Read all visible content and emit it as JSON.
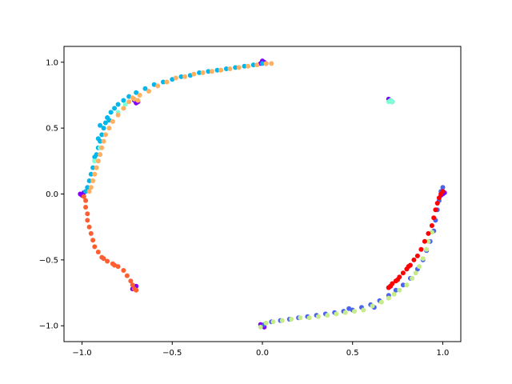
{
  "chart_data": {
    "type": "scatter",
    "title": "",
    "xlabel": "",
    "ylabel": "",
    "xlim": [
      -1.1,
      1.1
    ],
    "ylim": [
      -1.12,
      1.12
    ],
    "grid": false,
    "legend": "none",
    "x_ticks": [
      {
        "value": -1.0,
        "label": "−1.0"
      },
      {
        "value": -0.5,
        "label": "−0.5"
      },
      {
        "value": 0.0,
        "label": "0.0"
      },
      {
        "value": 0.5,
        "label": "0.5"
      },
      {
        "value": 1.0,
        "label": "1.0"
      }
    ],
    "y_ticks": [
      {
        "value": -1.0,
        "label": "−1.0"
      },
      {
        "value": -0.5,
        "label": "−0.5"
      },
      {
        "value": 0.0,
        "label": "0.0"
      },
      {
        "value": 0.5,
        "label": "0.5"
      },
      {
        "value": 1.0,
        "label": "1.0"
      }
    ],
    "series": [
      {
        "color": "#7f00ff",
        "points": [
          [
            0.0,
            1.01
          ],
          [
            0.01,
            1.0
          ],
          [
            -0.01,
            0.99
          ],
          [
            0.02,
            0.99
          ],
          [
            0.71,
            0.71
          ],
          [
            0.72,
            0.7
          ],
          [
            0.7,
            0.72
          ],
          [
            -0.71,
            0.71
          ],
          [
            -0.69,
            0.7
          ],
          [
            -0.7,
            0.69
          ],
          [
            -1.01,
            0.0
          ],
          [
            -1.0,
            -0.01
          ],
          [
            -0.99,
            0.01
          ],
          [
            -0.71,
            -0.71
          ],
          [
            -0.72,
            -0.72
          ],
          [
            -0.7,
            -0.7
          ],
          [
            0.7,
            -0.71
          ],
          [
            0.71,
            -0.7
          ],
          [
            0.0,
            -1.0
          ],
          [
            0.01,
            -1.01
          ],
          [
            -0.01,
            -0.99
          ],
          [
            1.0,
            0.0
          ],
          [
            1.01,
            0.01
          ],
          [
            0.99,
            -0.01
          ]
        ]
      },
      {
        "color": "#00b7eb",
        "points": [
          [
            -0.98,
            0.02
          ],
          [
            -0.97,
            0.05
          ],
          [
            -0.96,
            0.1
          ],
          [
            -0.95,
            0.15
          ],
          [
            -0.94,
            0.2
          ],
          [
            -0.93,
            0.25
          ],
          [
            -0.92,
            0.3
          ],
          [
            -0.91,
            0.35
          ],
          [
            -0.9,
            0.4
          ],
          [
            -0.89,
            0.45
          ],
          [
            -0.88,
            0.5
          ],
          [
            -0.87,
            0.54
          ],
          [
            -0.86,
            0.58
          ],
          [
            -0.84,
            0.62
          ],
          [
            -0.82,
            0.65
          ],
          [
            -0.8,
            0.68
          ],
          [
            -0.77,
            0.71
          ],
          [
            -0.74,
            0.74
          ],
          [
            -0.7,
            0.77
          ],
          [
            -0.65,
            0.8
          ],
          [
            -0.6,
            0.83
          ],
          [
            -0.55,
            0.85
          ],
          [
            -0.5,
            0.87
          ],
          [
            -0.45,
            0.89
          ],
          [
            -0.4,
            0.9
          ],
          [
            -0.35,
            0.92
          ],
          [
            -0.3,
            0.93
          ],
          [
            -0.25,
            0.94
          ],
          [
            -0.2,
            0.95
          ],
          [
            -0.15,
            0.96
          ],
          [
            -0.1,
            0.97
          ],
          [
            -0.05,
            0.98
          ],
          [
            0.0,
            0.99
          ],
          [
            -0.93,
            0.28
          ],
          [
            -0.91,
            0.42
          ],
          [
            -0.9,
            0.52
          ],
          [
            -0.85,
            0.56
          ]
        ]
      },
      {
        "color": "#4a63f0",
        "points": [
          [
            0.01,
            -0.99
          ],
          [
            0.05,
            -0.97
          ],
          [
            0.1,
            -0.96
          ],
          [
            0.15,
            -0.95
          ],
          [
            0.2,
            -0.94
          ],
          [
            0.25,
            -0.93
          ],
          [
            0.3,
            -0.92
          ],
          [
            0.35,
            -0.91
          ],
          [
            0.4,
            -0.9
          ],
          [
            0.45,
            -0.89
          ],
          [
            0.5,
            -0.88
          ],
          [
            0.55,
            -0.86
          ],
          [
            0.6,
            -0.84
          ],
          [
            0.65,
            -0.81
          ],
          [
            0.7,
            -0.77
          ],
          [
            0.74,
            -0.73
          ],
          [
            0.78,
            -0.69
          ],
          [
            0.82,
            -0.64
          ],
          [
            0.86,
            -0.57
          ],
          [
            0.89,
            -0.5
          ],
          [
            0.91,
            -0.43
          ],
          [
            0.93,
            -0.36
          ],
          [
            0.95,
            -0.28
          ],
          [
            0.96,
            -0.2
          ],
          [
            0.97,
            -0.12
          ],
          [
            0.98,
            -0.05
          ],
          [
            0.99,
            0.02
          ],
          [
            1.0,
            0.05
          ],
          [
            0.62,
            -0.86
          ],
          [
            0.48,
            -0.87
          ]
        ]
      },
      {
        "color": "#7fffd4",
        "points": [
          [
            0.71,
            0.71
          ],
          [
            0.72,
            0.7
          ],
          [
            0.7,
            0.7
          ],
          [
            -0.93,
            0.25
          ],
          [
            -0.9,
            0.35
          ],
          [
            -0.8,
            0.62
          ],
          [
            -0.76,
            0.68
          ]
        ]
      },
      {
        "color": "#c6ec8a",
        "points": [
          [
            -0.01,
            -1.01
          ],
          [
            0.02,
            -0.98
          ],
          [
            0.06,
            -0.97
          ],
          [
            0.11,
            -0.96
          ],
          [
            0.16,
            -0.95
          ],
          [
            0.21,
            -0.94
          ],
          [
            0.26,
            -0.94
          ],
          [
            0.31,
            -0.93
          ],
          [
            0.36,
            -0.92
          ],
          [
            0.41,
            -0.91
          ],
          [
            0.46,
            -0.9
          ],
          [
            0.51,
            -0.89
          ],
          [
            0.56,
            -0.88
          ],
          [
            0.61,
            -0.85
          ],
          [
            0.66,
            -0.82
          ],
          [
            0.7,
            -0.79
          ],
          [
            0.73,
            -0.76
          ],
          [
            0.76,
            -0.73
          ],
          [
            0.8,
            -0.69
          ],
          [
            0.83,
            -0.64
          ],
          [
            0.85,
            -0.6
          ],
          [
            0.87,
            -0.55
          ],
          [
            0.89,
            -0.49
          ],
          [
            0.91,
            -0.42
          ],
          [
            0.92,
            -0.36
          ],
          [
            0.94,
            -0.29
          ]
        ]
      },
      {
        "color": "#ffb060",
        "points": [
          [
            -0.96,
            0.02
          ],
          [
            -0.95,
            0.05
          ],
          [
            -0.94,
            0.1
          ],
          [
            -0.93,
            0.15
          ],
          [
            -0.92,
            0.2
          ],
          [
            -0.91,
            0.25
          ],
          [
            -0.9,
            0.3
          ],
          [
            -0.89,
            0.35
          ],
          [
            -0.88,
            0.4
          ],
          [
            -0.87,
            0.45
          ],
          [
            -0.85,
            0.5
          ],
          [
            -0.83,
            0.55
          ],
          [
            -0.8,
            0.6
          ],
          [
            -0.77,
            0.65
          ],
          [
            -0.74,
            0.7
          ],
          [
            -0.71,
            0.72
          ],
          [
            -0.68,
            0.75
          ],
          [
            -0.63,
            0.78
          ],
          [
            -0.58,
            0.82
          ],
          [
            -0.53,
            0.85
          ],
          [
            -0.48,
            0.88
          ],
          [
            -0.43,
            0.89
          ],
          [
            -0.38,
            0.91
          ],
          [
            -0.33,
            0.92
          ],
          [
            -0.28,
            0.93
          ],
          [
            -0.23,
            0.94
          ],
          [
            -0.18,
            0.95
          ],
          [
            -0.13,
            0.96
          ],
          [
            -0.08,
            0.97
          ],
          [
            -0.03,
            0.98
          ],
          [
            0.02,
            0.99
          ],
          [
            0.05,
            0.99
          ],
          [
            -0.72,
            0.73
          ],
          [
            -0.69,
            0.71
          ]
        ]
      },
      {
        "color": "#ff5f30",
        "points": [
          [
            -0.99,
            -0.02
          ],
          [
            -0.98,
            -0.05
          ],
          [
            -0.98,
            -0.1
          ],
          [
            -0.97,
            -0.15
          ],
          [
            -0.97,
            -0.2
          ],
          [
            -0.96,
            -0.25
          ],
          [
            -0.95,
            -0.3
          ],
          [
            -0.94,
            -0.35
          ],
          [
            -0.93,
            -0.4
          ],
          [
            -0.91,
            -0.44
          ],
          [
            -0.89,
            -0.48
          ],
          [
            -0.86,
            -0.51
          ],
          [
            -0.83,
            -0.53
          ],
          [
            -0.8,
            -0.55
          ],
          [
            -0.77,
            -0.58
          ],
          [
            -0.75,
            -0.62
          ],
          [
            -0.73,
            -0.66
          ],
          [
            -0.72,
            -0.69
          ],
          [
            -0.71,
            -0.72
          ],
          [
            -0.7,
            -0.73
          ],
          [
            -0.88,
            -0.49
          ],
          [
            -0.82,
            -0.54
          ]
        ]
      },
      {
        "color": "#ff0000",
        "points": [
          [
            0.7,
            -0.71
          ],
          [
            0.72,
            -0.68
          ],
          [
            0.74,
            -0.66
          ],
          [
            0.76,
            -0.63
          ],
          [
            0.78,
            -0.6
          ],
          [
            0.8,
            -0.57
          ],
          [
            0.82,
            -0.54
          ],
          [
            0.84,
            -0.5
          ],
          [
            0.86,
            -0.47
          ],
          [
            0.88,
            -0.42
          ],
          [
            0.9,
            -0.36
          ],
          [
            0.92,
            -0.3
          ],
          [
            0.94,
            -0.24
          ],
          [
            0.95,
            -0.18
          ],
          [
            0.96,
            -0.12
          ],
          [
            0.97,
            -0.07
          ],
          [
            0.98,
            -0.03
          ],
          [
            0.99,
            0.0
          ],
          [
            1.0,
            0.02
          ],
          [
            0.71,
            -0.7
          ],
          [
            0.75,
            -0.65
          ],
          [
            0.81,
            -0.55
          ]
        ]
      }
    ]
  }
}
